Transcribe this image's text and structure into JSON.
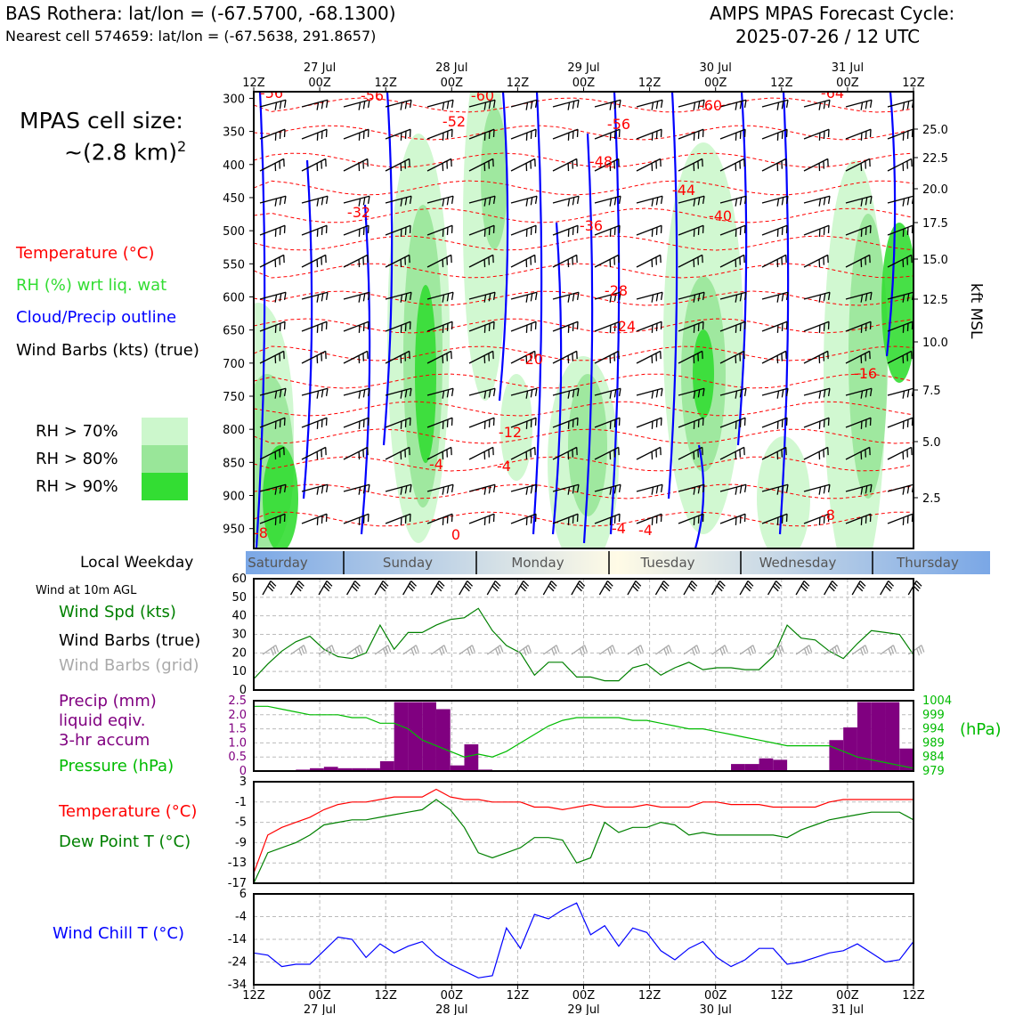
{
  "header": {
    "station_line": "BAS Rothera: lat/lon = (-67.5700, -68.1300)",
    "cell_line": "Nearest cell 574659: lat/lon = (-67.5638, 291.8657)",
    "cycle_line1": "AMPS MPAS Forecast Cycle:",
    "cycle_line2": "2025-07-26 / 12 UTC"
  },
  "legend_left": {
    "cell_size_title": "MPAS cell size:",
    "cell_size_value": "~(2.8 km)",
    "cell_size_exp": "2",
    "temperature": "Temperature (°C)",
    "rh": "RH (%) wrt liq. wat",
    "cloud": "Cloud/Precip outline",
    "wind_barbs": "Wind Barbs (kts) (true)",
    "rh_levels": [
      {
        "label": "RH > 70%",
        "color": "#ccf7cc"
      },
      {
        "label": "RH > 80%",
        "color": "#99e699"
      },
      {
        "label": "RH > 90%",
        "color": "#33dd33"
      }
    ]
  },
  "colors": {
    "temperature": "#ff0000",
    "rh_text": "#33dd33",
    "cloud": "#0000ff",
    "wind_speed": "#008000",
    "grid_barbs": "#aaaaaa",
    "precip": "#800080",
    "pressure": "#00bb00",
    "dewpoint": "#008000",
    "windchill": "#0000ff"
  },
  "time_axis": {
    "top_ticks": [
      "12Z",
      "00Z",
      "12Z",
      "00Z",
      "12Z",
      "00Z",
      "12Z",
      "00Z",
      "12Z",
      "00Z",
      "12Z"
    ],
    "dates": [
      "27 Jul",
      "28 Jul",
      "29 Jul",
      "30 Jul",
      "31 Jul"
    ]
  },
  "weekday_band": {
    "label": "Local Weekday",
    "days": [
      "Saturday",
      "Sunday",
      "Monday",
      "Tuesday",
      "Wednesday",
      "Thursday"
    ]
  },
  "panel_labels": {
    "wind10m": "Wind at 10m AGL",
    "wind_spd": "Wind Spd (kts)",
    "barbs_true": "Wind Barbs (true)",
    "barbs_grid": "Wind Barbs (grid)",
    "precip1": "Precip (mm)",
    "precip2": "liquid eqiv.",
    "precip3": "3-hr accum",
    "pressure": "Pressure (hPa)",
    "pressure_unit": "(hPa)",
    "temp": "Temperature (°C)",
    "dew": "Dew Point T (°C)",
    "windchill": "Wind Chill T (°C)",
    "kft": "kft MSL"
  },
  "chart_data": [
    {
      "type": "heatmap",
      "name": "cross-section",
      "y_ticks_hpa": [
        "300",
        "350",
        "400",
        "450",
        "500",
        "550",
        "600",
        "650",
        "700",
        "750",
        "800",
        "850",
        "900",
        "950"
      ],
      "right_ticks_kft": [
        "25.0",
        "22.5",
        "20.0",
        "17.5",
        "15.0",
        "12.5",
        "10.0",
        "7.5",
        "5.0",
        "2.5"
      ],
      "temperature_labels": [
        "-56",
        "-56",
        "-60",
        "-52",
        "-60",
        "-56",
        "-64",
        "-48",
        "-44",
        "-32",
        "-36",
        "-40",
        "-28",
        "-24",
        "-20",
        "-16",
        "-12",
        "-8",
        "-4",
        "-4",
        "-8",
        "0",
        "-4",
        "-4"
      ]
    },
    {
      "type": "line",
      "name": "wind-speed",
      "ylim": [
        0,
        60
      ],
      "y_ticks": [
        "60",
        "50",
        "40",
        "30",
        "20",
        "10",
        "0"
      ],
      "values": [
        6,
        14,
        21,
        26,
        29,
        22,
        18,
        17,
        20,
        35,
        22,
        31,
        31,
        35,
        38,
        39,
        44,
        32,
        24,
        20,
        8,
        15,
        15,
        7,
        7,
        5,
        5,
        12,
        14,
        8,
        12,
        15,
        11,
        12,
        12,
        11,
        11,
        18,
        35,
        28,
        27,
        21,
        17,
        25,
        32,
        31,
        30,
        19
      ]
    },
    {
      "type": "bar",
      "name": "precip-pressure",
      "ylim": [
        0,
        2.5
      ],
      "y_ticks": [
        "2.5",
        "2.0",
        "1.5",
        "1.0",
        "0.5",
        "0"
      ],
      "pressure_ticks": [
        "1004",
        "999",
        "994",
        "989",
        "984",
        "979"
      ],
      "pressure_ylim": [
        979,
        1004
      ],
      "precip_values": [
        0,
        0,
        0,
        0.05,
        0.1,
        0.15,
        0.1,
        0.1,
        0.1,
        0.35,
        2.45,
        2.45,
        2.45,
        2.2,
        0.2,
        0.95,
        0.05,
        0,
        0,
        0,
        0,
        0,
        0,
        0,
        0,
        0,
        0,
        0,
        0,
        0,
        0,
        0,
        0,
        0,
        0.25,
        0.25,
        0.45,
        0.4,
        0,
        0,
        0,
        1.1,
        1.55,
        2.45,
        2.45,
        2.45,
        0.8
      ],
      "pressure_values": [
        1002,
        1002,
        1001,
        1000,
        999,
        999,
        999,
        998,
        998,
        996,
        996,
        994,
        990,
        988,
        986,
        984,
        985,
        984,
        986,
        989,
        992,
        995,
        997,
        998,
        998,
        998,
        998,
        997,
        997,
        996,
        995,
        994,
        994,
        993,
        992,
        991,
        990,
        989,
        988,
        988,
        988,
        988,
        986,
        984,
        983,
        982,
        981,
        980
      ]
    },
    {
      "type": "line",
      "name": "temperature-dewpoint",
      "ylim": [
        -17,
        3
      ],
      "y_ticks": [
        "3",
        "-1",
        "-5",
        "-9",
        "-13",
        "-17"
      ],
      "series": [
        {
          "name": "Temperature (°C)",
          "values": [
            -15,
            -7.5,
            -6,
            -5,
            -4,
            -2.5,
            -1.5,
            -1,
            -1,
            -0.5,
            0,
            0,
            0,
            1.5,
            0,
            -0.5,
            -0.5,
            -1,
            -1,
            -1,
            -2,
            -2,
            -2.5,
            -2,
            -1.5,
            -2,
            -2,
            -2,
            -1.5,
            -2,
            -2,
            -2,
            -1,
            -1,
            -1.5,
            -1.5,
            -1.5,
            -2,
            -2,
            -2,
            -2,
            -1,
            -0.5,
            -0.5,
            -0.5,
            -0.5,
            -0.5,
            -0.5
          ]
        },
        {
          "name": "Dew Point T (°C)",
          "values": [
            -17,
            -11,
            -10,
            -9,
            -7.5,
            -5.5,
            -5,
            -4.5,
            -4.5,
            -4,
            -3.5,
            -3,
            -2.5,
            -0.5,
            -2.5,
            -6,
            -11,
            -12,
            -11,
            -10,
            -8,
            -8,
            -8.5,
            -13,
            -12,
            -5,
            -7,
            -6,
            -6,
            -5,
            -5.5,
            -7.5,
            -7,
            -7.5,
            -7.5,
            -7.5,
            -7.5,
            -7.5,
            -8,
            -6.5,
            -5.5,
            -4.5,
            -4,
            -3.5,
            -3,
            -3,
            -3,
            -4.5
          ]
        }
      ]
    },
    {
      "type": "line",
      "name": "wind-chill",
      "ylim": [
        -34,
        6
      ],
      "y_ticks": [
        "6",
        "-4",
        "-14",
        "-24",
        "-34"
      ],
      "values": [
        -20,
        -21,
        -26,
        -25,
        -25,
        -19,
        -13,
        -14,
        -22,
        -16,
        -20,
        -17,
        -15,
        -21,
        -25,
        -28,
        -31,
        -30,
        -9,
        -18,
        -3,
        -5,
        -1,
        2,
        -12,
        -8,
        -17,
        -9,
        -11,
        -19,
        -23,
        -18,
        -15,
        -22,
        -26,
        -23,
        -18,
        -18,
        -25,
        -24,
        -22,
        -20,
        -19,
        -16,
        -20,
        -24,
        -23,
        -15
      ]
    }
  ]
}
